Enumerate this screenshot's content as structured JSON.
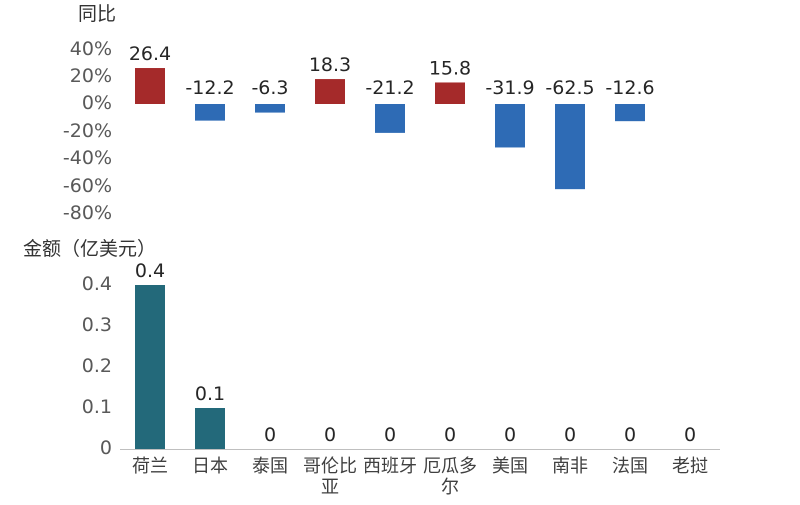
{
  "chart_data": [
    {
      "type": "bar",
      "ylabel": "同比",
      "unit": "%",
      "categories": [
        "荷兰",
        "日本",
        "泰国",
        "哥伦比亚",
        "西班牙",
        "厄瓜多尔",
        "美国",
        "南非",
        "法国",
        "老挝"
      ],
      "values": [
        26.4,
        -12.2,
        -6.3,
        18.3,
        -21.2,
        15.8,
        -31.9,
        -62.5,
        -12.6,
        null
      ],
      "value_labels": [
        "26.4",
        "-12.2",
        "-6.3",
        "18.3",
        "-21.2",
        "15.8",
        "-31.9",
        "-62.5",
        "-12.6",
        ""
      ],
      "yticks": [
        "40%",
        "20%",
        "0%",
        "-20%",
        "-40%",
        "-60%",
        "-80%"
      ],
      "ylim": [
        -80,
        40
      ],
      "grid": false,
      "colors": {
        "positive": "#A52A2A",
        "negative": "#2E6BB5"
      }
    },
    {
      "type": "bar",
      "ylabel": "金额（亿美元）",
      "categories": [
        "荷兰",
        "日本",
        "泰国",
        "哥伦比亚",
        "西班牙",
        "厄瓜多尔",
        "美国",
        "南非",
        "法国",
        "老挝"
      ],
      "category_lines": [
        [
          "荷兰"
        ],
        [
          "日本"
        ],
        [
          "泰国"
        ],
        [
          "哥伦比",
          "亚"
        ],
        [
          "西班牙"
        ],
        [
          "厄瓜多",
          "尔"
        ],
        [
          "美国"
        ],
        [
          "南非"
        ],
        [
          "法国"
        ],
        [
          "老挝"
        ]
      ],
      "values": [
        0.4,
        0.1,
        0,
        0,
        0,
        0,
        0,
        0,
        0,
        0
      ],
      "value_labels": [
        "0.4",
        "0.1",
        "0",
        "0",
        "0",
        "0",
        "0",
        "0",
        "0",
        "0"
      ],
      "yticks": [
        "0.4",
        "0.3",
        "0.2",
        "0.1",
        "0"
      ],
      "ylim": [
        0,
        0.4
      ],
      "grid": false,
      "colors": {
        "bar": "#23697A",
        "axis": "#BFBFBF"
      }
    }
  ]
}
